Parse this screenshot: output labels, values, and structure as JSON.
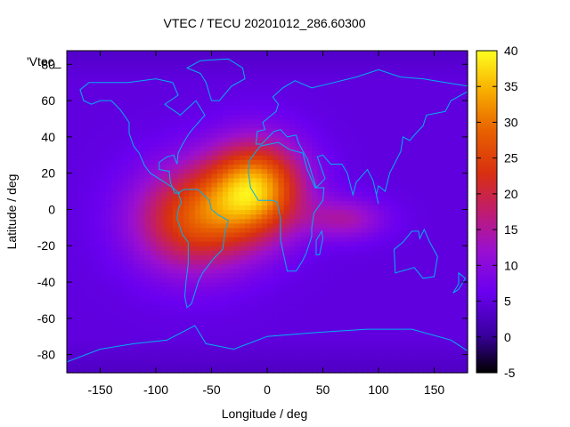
{
  "chart_data": {
    "type": "heatmap",
    "title": "VTEC / TECU 20201012_286.60300",
    "xlabel": "Longitude / deg",
    "ylabel": "Latitude / deg",
    "corner_label": "'Vtec_",
    "xlim": [
      -180,
      180
    ],
    "ylim": [
      -90,
      87.5
    ],
    "x_ticks": [
      -150,
      -100,
      -50,
      0,
      50,
      100,
      150
    ],
    "y_ticks": [
      -80,
      -60,
      -40,
      -20,
      0,
      20,
      40,
      60,
      80
    ],
    "colorbar": {
      "min": -5,
      "max": 40,
      "ticks": [
        -5,
        0,
        5,
        10,
        15,
        20,
        25,
        30,
        35,
        40
      ]
    },
    "grid": false,
    "legend": "colorbar-right",
    "field": {
      "background": 5,
      "peaks": [
        {
          "lon": -10,
          "lat": 12,
          "value": 33,
          "sigma_lon": 30,
          "sigma_lat": 18
        },
        {
          "lon": -65,
          "lat": -5,
          "value": 26,
          "sigma_lon": 38,
          "sigma_lat": 20
        },
        {
          "lon": 70,
          "lat": -5,
          "value": 14,
          "sigma_lon": 25,
          "sigma_lat": 8
        }
      ]
    }
  }
}
